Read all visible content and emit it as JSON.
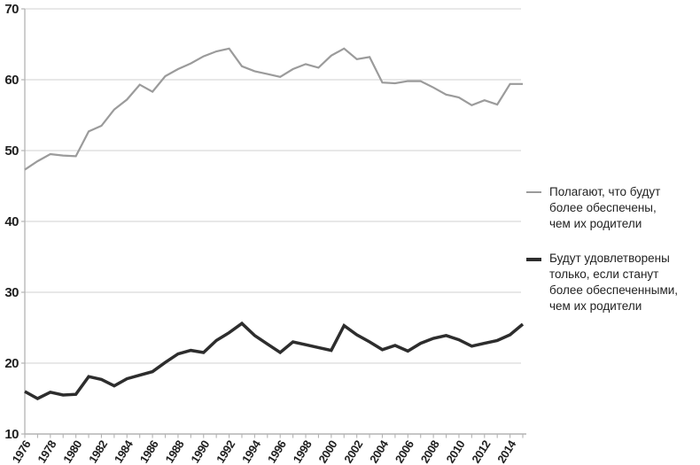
{
  "chart_data": {
    "type": "line",
    "title": "",
    "grid": true,
    "legend_position": "right",
    "ylim": [
      10,
      70
    ],
    "yticks": [
      10,
      20,
      30,
      40,
      50,
      60,
      70
    ],
    "x_years": [
      1976,
      1977,
      1978,
      1979,
      1980,
      1981,
      1982,
      1983,
      1984,
      1985,
      1986,
      1987,
      1988,
      1989,
      1990,
      1991,
      1992,
      1993,
      1994,
      1995,
      1996,
      1997,
      1998,
      1999,
      2000,
      2001,
      2002,
      2003,
      2004,
      2005,
      2006,
      2007,
      2008,
      2009,
      2010,
      2011,
      2012,
      2013,
      2014,
      2015
    ],
    "xtick_labels": [
      "1976",
      "1978",
      "1980",
      "1982",
      "1984",
      "1986",
      "1988",
      "1990",
      "1992",
      "1994",
      "1996",
      "1998",
      "2000",
      "2002",
      "2004",
      "2006",
      "2008",
      "2010",
      "2012",
      "2014"
    ],
    "series": [
      {
        "name": "Полагают, что будут более обеспечены, чем их родители",
        "legend_lines": [
          "Полагают, что будут",
          "более обеспечены,",
          "чем их родители"
        ],
        "color": "#9b9b9b",
        "stroke_width": 2.2,
        "swatch_thickness": 2,
        "values": [
          47.3,
          48.5,
          49.5,
          49.3,
          49.2,
          52.7,
          53.5,
          55.8,
          57.2,
          59.3,
          58.3,
          60.5,
          61.5,
          62.3,
          63.3,
          64.0,
          64.4,
          61.9,
          61.2,
          60.8,
          60.4,
          61.5,
          62.2,
          61.7,
          63.4,
          64.4,
          62.9,
          63.2,
          59.6,
          59.5,
          59.8,
          59.8,
          58.9,
          57.9,
          57.5,
          56.4,
          57.1,
          56.5,
          59.4,
          59.4
        ]
      },
      {
        "name": "Будут удовлетворены только, если станут более обеспеченными, чем их родители",
        "legend_lines": [
          "Будут удовлетворены",
          "только, если станут",
          "более обеспеченными,",
          "чем их родители"
        ],
        "color": "#2d2d2d",
        "stroke_width": 3.5,
        "swatch_thickness": 4,
        "values": [
          16.0,
          15.0,
          15.9,
          15.5,
          15.6,
          18.1,
          17.7,
          16.8,
          17.8,
          18.3,
          18.8,
          20.1,
          21.3,
          21.8,
          21.5,
          23.2,
          24.3,
          25.6,
          23.9,
          22.7,
          21.5,
          23.0,
          22.6,
          22.2,
          21.8,
          25.3,
          24.0,
          23.0,
          21.9,
          22.5,
          21.7,
          22.8,
          23.5,
          23.9,
          23.3,
          22.4,
          22.8,
          23.2,
          24.0,
          25.5
        ]
      }
    ],
    "colors": {
      "grid": "#d9d9d9",
      "axis": "#b3b3b3",
      "tick_text": "#1f1f1f",
      "legend_text": "#222222",
      "background": "#ffffff"
    }
  }
}
